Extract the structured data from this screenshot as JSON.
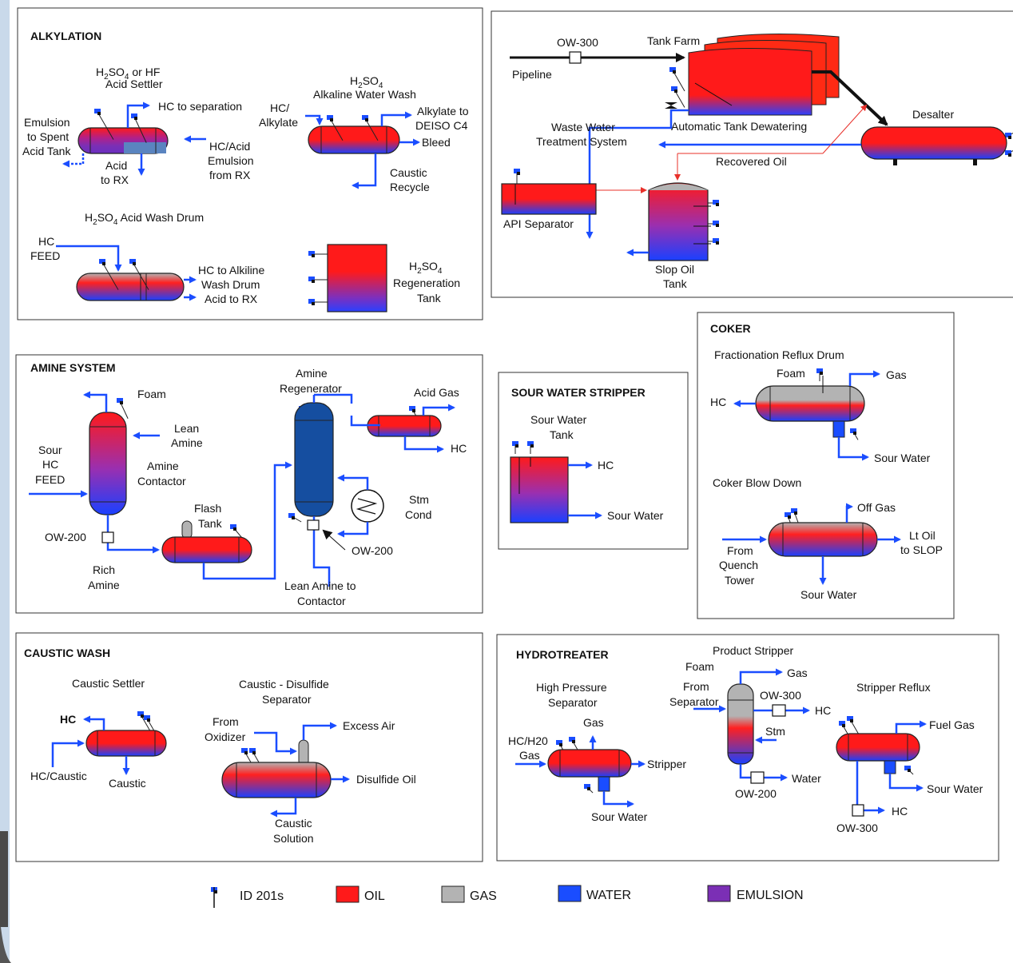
{
  "colors": {
    "oil": "#ff1a1a",
    "gas": "#b3b3b3",
    "water": "#1a4dff",
    "emulsion": "#7b2fb5",
    "line": "#1a4dff",
    "pipe": "#111111",
    "thin": "#e8302a"
  },
  "legend": [
    {
      "label": "ID 201s",
      "key": "sensor"
    },
    {
      "label": "OIL",
      "key": "oil"
    },
    {
      "label": "GAS",
      "key": "gas"
    },
    {
      "label": "WATER",
      "key": "water"
    },
    {
      "label": "EMULSION",
      "key": "emulsion"
    }
  ],
  "alkylation": {
    "title": "ALKYLATION",
    "settler_title": [
      "H2SO4 or HF",
      "Acid Settler"
    ],
    "hc_sep": "HC to separation",
    "emulsion_spent": [
      "Emulsion",
      "to Spent",
      "Acid Tank"
    ],
    "acid_rx": [
      "Acid",
      "to RX"
    ],
    "hc_acid_emulsion": [
      "HC/Acid",
      "Emulsion",
      "from RX"
    ],
    "alk_wash_title": [
      "H2SO4",
      "Alkaline Water Wash"
    ],
    "hc_alkylate": [
      "HC/",
      "Alkylate"
    ],
    "alkylate_deiso": [
      "Alkylate to",
      "DEISO C4"
    ],
    "bleed": "Bleed",
    "caustic_recycle": [
      "Caustic",
      "Recycle"
    ],
    "acid_wash_title": "H2SO4 Acid Wash Drum",
    "hc_feed": [
      "HC",
      "FEED"
    ],
    "hc_to_alk": [
      "HC to Alkiline",
      "Wash Drum"
    ],
    "acid_to_rx": "Acid to RX",
    "regen_tank": [
      "H2SO4",
      "Regeneration",
      "Tank"
    ]
  },
  "tankfarm": {
    "ow300": "OW-300",
    "tank_farm": "Tank Farm",
    "pipeline": "Pipeline",
    "desalter": "Desalter",
    "auto_dewater": "Automatic Tank Dewatering",
    "wwts": [
      "Waste Water",
      "Treatment System"
    ],
    "recovered_oil": "Recovered Oil",
    "api_sep": "API Separator",
    "slop_tank": [
      "Slop Oil",
      "Tank"
    ]
  },
  "amine": {
    "title": "AMINE SYSTEM",
    "foam": "Foam",
    "lean_amine": [
      "Lean",
      "Amine"
    ],
    "sour_hc_feed": [
      "Sour",
      "HC",
      "FEED"
    ],
    "amine_contactor": [
      "Amine",
      "Contactor"
    ],
    "ow200a": "OW-200",
    "rich_amine": [
      "Rich",
      "Amine"
    ],
    "flash_tank": [
      "Flash",
      "Tank"
    ],
    "amine_regen": [
      "Amine",
      "Regenerator"
    ],
    "acid_gas": "Acid Gas",
    "hc": "HC",
    "stm_cond": [
      "Stm",
      "Cond"
    ],
    "ow200b": "OW-200",
    "lean_to_contactor": [
      "Lean Amine to",
      "Contactor"
    ]
  },
  "sour_water": {
    "title": "SOUR WATER STRIPPER",
    "tank": [
      "Sour Water",
      "Tank"
    ],
    "hc": "HC",
    "sour_water": "Sour Water"
  },
  "coker": {
    "title": "COKER",
    "frac_drum": "Fractionation Reflux Drum",
    "foam": "Foam",
    "gas": "Gas",
    "hc": "HC",
    "sour_water": "Sour Water",
    "blow_down": "Coker Blow Down",
    "off_gas": "Off Gas",
    "lt_oil": [
      "Lt Oil",
      "to SLOP"
    ],
    "from_quench": [
      "From",
      "Quench",
      "Tower"
    ],
    "sour_water2": "Sour Water"
  },
  "caustic": {
    "title": "CAUSTIC WASH",
    "settler": "Caustic Settler",
    "hc": "HC",
    "hc_caustic": "HC/Caustic",
    "caustic": "Caustic",
    "disulfide_sep": [
      "Caustic - Disulfide",
      "Separator"
    ],
    "from_oxidizer": [
      "From",
      "Oxidizer"
    ],
    "excess_air": "Excess Air",
    "disulfide_oil": "Disulfide Oil",
    "caustic_solution": [
      "Caustic",
      "Solution"
    ]
  },
  "hydrotreater": {
    "title": "HYDROTREATER",
    "hp_sep": [
      "High Pressure",
      "Separator"
    ],
    "hc_h20": [
      "HC/H20",
      "Gas"
    ],
    "gas": "Gas",
    "stripper": "Stripper",
    "sour_water": "Sour Water",
    "product_stripper": "Product Stripper",
    "foam": "Foam",
    "from_sep": [
      "From",
      "Separator"
    ],
    "gas2": "Gas",
    "ow300": "OW-300",
    "hc": "HC",
    "stm": "Stm",
    "water": "Water",
    "ow200": "OW-200",
    "stripper_reflux": "Stripper Reflux",
    "fuel_gas": "Fuel Gas",
    "sour_water2": "Sour Water",
    "hc2": "HC",
    "ow300b": "OW-300"
  }
}
